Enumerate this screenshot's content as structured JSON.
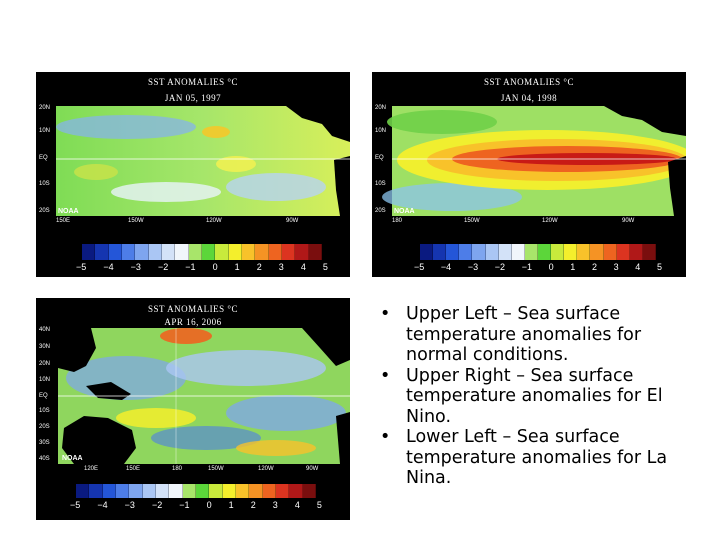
{
  "panels": {
    "upper_left": {
      "title": "SST ANOMALIES °C",
      "date": "JAN 05, 1997",
      "lat_labels": [
        "20N",
        "10N",
        "EQ",
        "10S",
        "20S"
      ],
      "lon_labels": [
        "150E",
        "150W",
        "120W",
        "90W"
      ],
      "credit": "NOAA",
      "colorbar_ticks": [
        "−5",
        "−4",
        "−3",
        "−2",
        "−1",
        "0",
        "1",
        "2",
        "3",
        "4",
        "5"
      ]
    },
    "upper_right": {
      "title": "SST ANOMALIES °C",
      "date": "JAN 04, 1998",
      "lat_labels": [
        "20N",
        "10N",
        "EQ",
        "10S",
        "20S"
      ],
      "lon_labels": [
        "180",
        "150W",
        "120W",
        "90W"
      ],
      "credit": "NOAA",
      "colorbar_ticks": [
        "−5",
        "−4",
        "−3",
        "−2",
        "−1",
        "0",
        "1",
        "2",
        "3",
        "4",
        "5"
      ]
    },
    "lower_left": {
      "title": "SST ANOMALIES °C",
      "date": "APR 16, 2006",
      "lat_labels": [
        "40N",
        "30N",
        "20N",
        "10N",
        "EQ",
        "10S",
        "20S",
        "30S",
        "40S"
      ],
      "lon_labels": [
        "120E",
        "150E",
        "180",
        "150W",
        "120W",
        "90W"
      ],
      "credit": "NOAA",
      "colorbar_ticks": [
        "−5",
        "−4",
        "−3",
        "−2",
        "−1",
        "0",
        "1",
        "2",
        "3",
        "4",
        "5"
      ]
    }
  },
  "colorbar_colors": [
    "#0a1a80",
    "#1535b0",
    "#2456d8",
    "#4d7de8",
    "#7ea5ef",
    "#aac6f4",
    "#d3e2f8",
    "#f1f6fb",
    "#a8e56a",
    "#5cd63a",
    "#c8ea3c",
    "#f4ef2c",
    "#f8c22a",
    "#f59324",
    "#ee6420",
    "#dc3420",
    "#b01818",
    "#7a0e0e"
  ],
  "bullets": [
    "Upper Left – Sea surface temperature anomalies for normal conditions.",
    "Upper Right – Sea surface temperature anomalies for El Nino.",
    "Lower Left – Sea surface temperature anomalies for La Nina."
  ],
  "icons": {
    "bullet": "bullet-dot-icon"
  }
}
